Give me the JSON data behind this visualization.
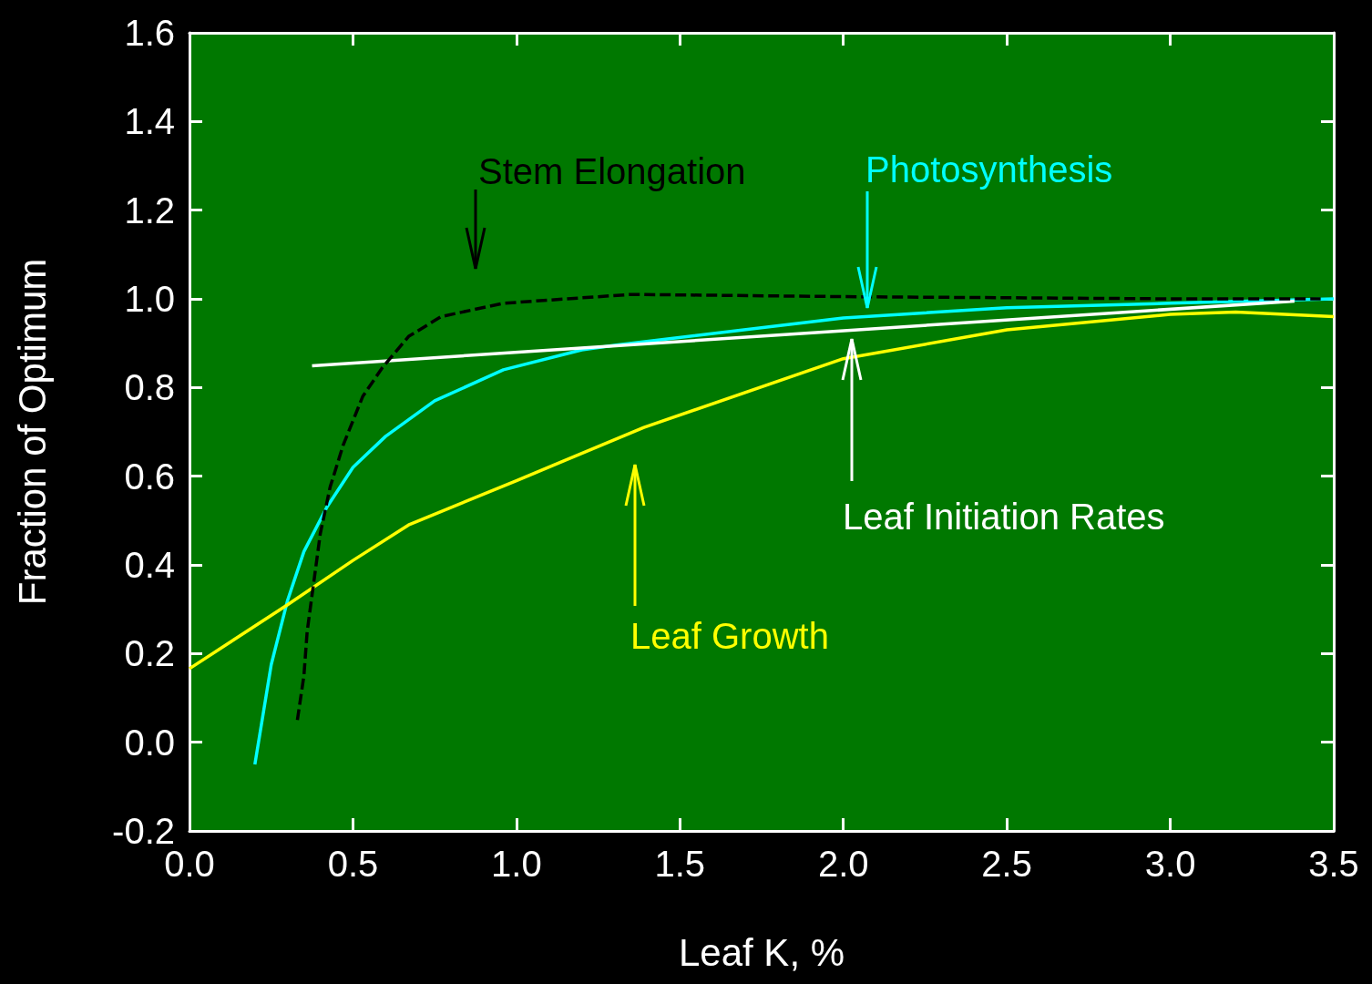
{
  "chart_data": {
    "type": "line",
    "xlabel": "Leaf K, %",
    "ylabel": "Fraction of Optimum",
    "xlim": [
      0,
      3.5
    ],
    "ylim": [
      -0.2,
      1.6
    ],
    "xticks": [
      {
        "value": 0,
        "label": "0.0"
      },
      {
        "value": 0.5,
        "label": "0.5"
      },
      {
        "value": 1,
        "label": "1.0"
      },
      {
        "value": 1.5,
        "label": "1.5"
      },
      {
        "value": 2,
        "label": "2.0"
      },
      {
        "value": 2.5,
        "label": "2.5"
      },
      {
        "value": 3,
        "label": "3.0"
      },
      {
        "value": 3.5,
        "label": "3.5"
      }
    ],
    "yticks": [
      {
        "value": -0.2,
        "label": "-0.2"
      },
      {
        "value": 0,
        "label": "0.0"
      },
      {
        "value": 0.2,
        "label": "0.2"
      },
      {
        "value": 0.4,
        "label": "0.4"
      },
      {
        "value": 0.6,
        "label": "0.6"
      },
      {
        "value": 0.8,
        "label": "0.8"
      },
      {
        "value": 1,
        "label": "1.0"
      },
      {
        "value": 1.2,
        "label": "1.2"
      },
      {
        "value": 1.4,
        "label": "1.4"
      },
      {
        "value": 1.6,
        "label": "1.6"
      }
    ],
    "grid": false,
    "marker": "none",
    "series": [
      {
        "color": "#000000",
        "line_style": "dashed",
        "x": [
          0.33,
          0.35,
          0.36,
          0.38,
          0.4,
          0.43,
          0.47,
          0.53,
          0.59,
          0.67,
          0.77,
          0.96,
          1.35,
          2,
          3,
          3.46
        ],
        "values": [
          0.05,
          0.15,
          0.25,
          0.36,
          0.47,
          0.575,
          0.67,
          0.78,
          0.845,
          0.915,
          0.96,
          0.99,
          1.01,
          1.005,
          1,
          1
        ]
      },
      {
        "color": "#00ffff",
        "x": [
          0.2,
          0.25,
          0.3,
          0.35,
          0.42,
          0.5,
          0.6,
          0.75,
          0.96,
          1.2,
          1.3,
          2,
          2.5,
          3,
          3.5
        ],
        "values": [
          -0.05,
          0.175,
          0.32,
          0.43,
          0.53,
          0.62,
          0.69,
          0.77,
          0.84,
          0.885,
          0.895,
          0.957,
          0.98,
          0.99,
          1
        ]
      },
      {
        "color": "#ffffff",
        "x": [
          0.375,
          3.38
        ],
        "values": [
          0.849,
          0.995
        ]
      },
      {
        "color": "#ffff00",
        "x": [
          0,
          0.3,
          0.5,
          0.67,
          1,
          1.39,
          2,
          2.5,
          3,
          3.2,
          3.5
        ],
        "values": [
          0.166,
          0.31,
          0.41,
          0.49,
          0.59,
          0.71,
          0.865,
          0.93,
          0.965,
          0.97,
          0.96
        ]
      }
    ],
    "annotations": [
      "Stem Elongation",
      "Photosynthesis",
      "Leaf Initiation Rates",
      "Leaf Growth"
    ]
  }
}
